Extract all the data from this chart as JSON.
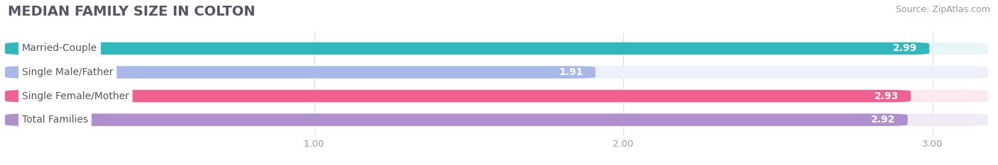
{
  "title": "MEDIAN FAMILY SIZE IN COLTON",
  "source": "Source: ZipAtlas.com",
  "categories": [
    "Married-Couple",
    "Single Male/Father",
    "Single Female/Mother",
    "Total Families"
  ],
  "values": [
    2.99,
    1.91,
    2.93,
    2.92
  ],
  "bar_colors": [
    "#30b8bc",
    "#a8b8e8",
    "#f06090",
    "#b090cc"
  ],
  "bar_bg_colors": [
    "#e8f6f7",
    "#eef0fa",
    "#fde8ef",
    "#f0eaf6"
  ],
  "xlim": [
    0.0,
    3.18
  ],
  "xstart": 0.0,
  "xticks": [
    1.0,
    2.0,
    3.0
  ],
  "xtick_labels": [
    "1.00",
    "2.00",
    "3.00"
  ],
  "title_fontsize": 14,
  "source_fontsize": 9,
  "label_fontsize": 10,
  "value_fontsize": 10,
  "figsize": [
    14.06,
    2.33
  ],
  "dpi": 100,
  "bar_height": 0.52,
  "background_color": "#ffffff",
  "label_text_color": "#555566"
}
